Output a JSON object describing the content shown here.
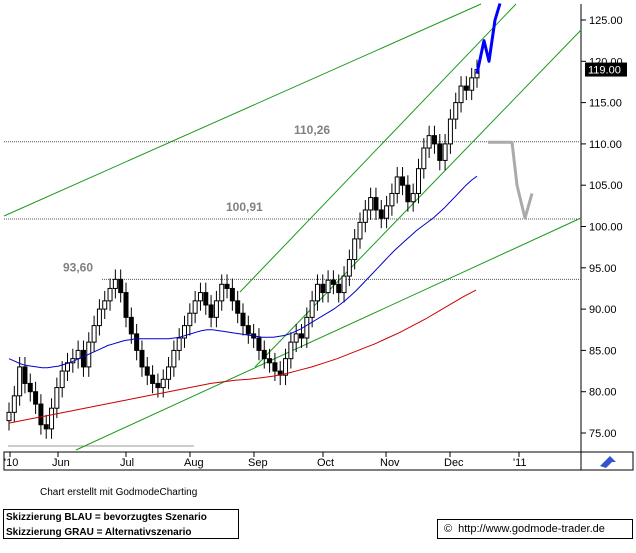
{
  "chart_data": {
    "type": "candlestick",
    "y_axis_position": "right",
    "ylim": [
      73,
      127
    ],
    "y_ticks": [
      "75.00",
      "80.00",
      "85.00",
      "90.00",
      "95.00",
      "100.00",
      "105.00",
      "110.00",
      "115.00",
      "120.00",
      "125.00"
    ],
    "x_labels": [
      "'10",
      "Jun",
      "Jul",
      "Aug",
      "Sep",
      "Oct",
      "Nov",
      "Dec",
      "'11"
    ],
    "last_price_label": "119.00",
    "last_price": 119.0,
    "levels": [
      {
        "label": "110,26",
        "value": 110.26
      },
      {
        "label": "100,91",
        "value": 100.91
      },
      {
        "label": "93,60",
        "value": 93.6
      }
    ],
    "series": [
      {
        "name": "",
        "kind": "close",
        "values": [
          77.5,
          79.5,
          83,
          81,
          80,
          78.5,
          76,
          75.5,
          78,
          80.5,
          82.5,
          83.5,
          84,
          85,
          83,
          86,
          88,
          90,
          91,
          92.5,
          93.6,
          92,
          89,
          87,
          85,
          83,
          82,
          81,
          80.5,
          81.5,
          83,
          85,
          86.5,
          88,
          89.5,
          91,
          92,
          90.5,
          89,
          91,
          93,
          92.5,
          91,
          89.5,
          88,
          87,
          86.5,
          85,
          84,
          83.5,
          82.5,
          82,
          84,
          86,
          87,
          86.5,
          89,
          91,
          93,
          92,
          93.5,
          93,
          92,
          94,
          96,
          98.5,
          100.5,
          102,
          103.5,
          102,
          101,
          102.5,
          104,
          106,
          105,
          103,
          104,
          107,
          109.5,
          111,
          110,
          108,
          110,
          113,
          115,
          117,
          116.5,
          118,
          119
        ]
      },
      {
        "name": "",
        "kind": "moving-average",
        "color": "#0000cc",
        "values": [
          84,
          83.7,
          83.4,
          83.2,
          83.1,
          83,
          82.9,
          82.9,
          83,
          83.1,
          83.3,
          83.5,
          83.8,
          84.1,
          84.4,
          84.7,
          85,
          85.3,
          85.6,
          85.8,
          86,
          86.2,
          86.3,
          86.4,
          86.4,
          86.4,
          86.4,
          86.4,
          86.4,
          86.4,
          86.5,
          86.6,
          86.8,
          87,
          87.2,
          87.4,
          87.5,
          87.5,
          87.4,
          87.3,
          87.2,
          87.1,
          87,
          86.9,
          86.8,
          86.7,
          86.6,
          86.6,
          86.6,
          86.7,
          86.8,
          87,
          87.3,
          87.6,
          88,
          88.4,
          88.8,
          89.2,
          89.6,
          90,
          90.5,
          91,
          91.6,
          92.2,
          92.9,
          93.6,
          94.3,
          95,
          95.7,
          96.4,
          97.1,
          97.7,
          98.3,
          98.9,
          99.5,
          100,
          100.5,
          101,
          101.6,
          102.2,
          102.9,
          103.6,
          104.3,
          105,
          105.6,
          106.1
        ]
      },
      {
        "name": "",
        "kind": "moving-average",
        "color": "#cc0000",
        "values": [
          76.2,
          76.5,
          76.8,
          77.1,
          77.4,
          77.7,
          78,
          78.3,
          78.6,
          78.9,
          79.2,
          79.5,
          79.8,
          80.1,
          80.4,
          80.7,
          81,
          81.2,
          81.4,
          81.5,
          81.7,
          81.9,
          82.2,
          82.6,
          83,
          83.5,
          84,
          84.6,
          85.2,
          85.8,
          86.5,
          87.2,
          88,
          88.8,
          89.7,
          90.6,
          91.5,
          92.3
        ]
      },
      {
        "name": "",
        "kind": "scenario",
        "color": "#0000ff",
        "values": [
          118.5,
          122.5,
          120,
          125,
          127
        ]
      },
      {
        "name": "",
        "kind": "scenario",
        "color": "#aaaaaa",
        "values": [
          110.2,
          110.2,
          105,
          101,
          104
        ]
      }
    ]
  },
  "footer": {
    "credit": "Chart erstellt mit GodmodeCharting",
    "legend_blue": "Skizzierung BLAU = bevorzugtes Szenario",
    "legend_grey": "Skizzierung GRAU = Alternativszenario",
    "copyright_symbol": "©",
    "url": "http://www.godmode-trader.de"
  }
}
